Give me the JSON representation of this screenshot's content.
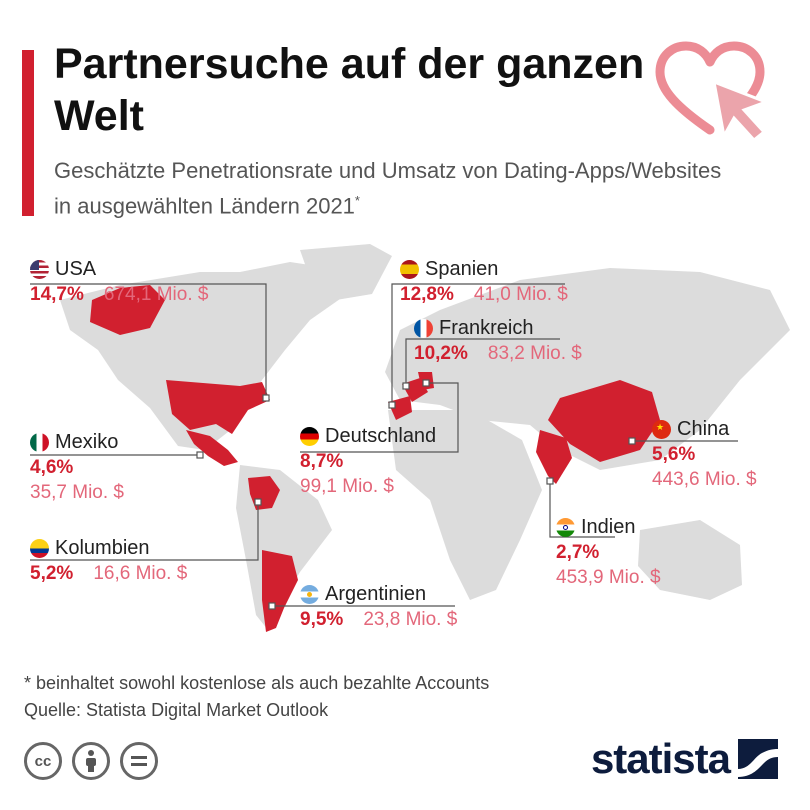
{
  "header": {
    "title": "Partnersuche auf der ganzen Welt",
    "subtitle": "Geschätzte Penetrationsrate und Umsatz von Dating-Apps/Websites in ausgewählten Ländern 2021",
    "subtitle_marker": "*"
  },
  "countries": [
    {
      "name": "USA",
      "rate": "14,7%",
      "revenue": "674,1 Mio. $",
      "flag": "us-flag-icon"
    },
    {
      "name": "Mexiko",
      "rate": "4,6%",
      "revenue": "35,7 Mio. $",
      "flag": "mx-flag-icon"
    },
    {
      "name": "Kolumbien",
      "rate": "5,2%",
      "revenue": "16,6 Mio. $",
      "flag": "co-flag-icon"
    },
    {
      "name": "Spanien",
      "rate": "12,8%",
      "revenue": "41,0 Mio. $",
      "flag": "es-flag-icon"
    },
    {
      "name": "Frankreich",
      "rate": "10,2%",
      "revenue": "83,2 Mio. $",
      "flag": "fr-flag-icon"
    },
    {
      "name": "Deutschland",
      "rate": "8,7%",
      "revenue": "99,1 Mio. $",
      "flag": "de-flag-icon"
    },
    {
      "name": "Argentinien",
      "rate": "9,5%",
      "revenue": "23,8 Mio. $",
      "flag": "ar-flag-icon"
    },
    {
      "name": "China",
      "rate": "5,6%",
      "revenue": "443,6 Mio. $",
      "flag": "cn-flag-icon"
    },
    {
      "name": "Indien",
      "rate": "2,7%",
      "revenue": "453,9 Mio. $",
      "flag": "in-flag-icon"
    }
  ],
  "footer": {
    "note": "* beinhaltet sowohl kostenlose als auch bezahlte Accounts",
    "source": "Quelle: Statista Digital Market Outlook",
    "brand": "statista",
    "license_icons": [
      "cc-icon",
      "attribution-icon",
      "no-derivatives-icon"
    ]
  },
  "colors": {
    "accent": "#d1202f",
    "revenue": "#e3677a",
    "map_land": "#dcdcdc",
    "brand": "#0d1c3d"
  }
}
